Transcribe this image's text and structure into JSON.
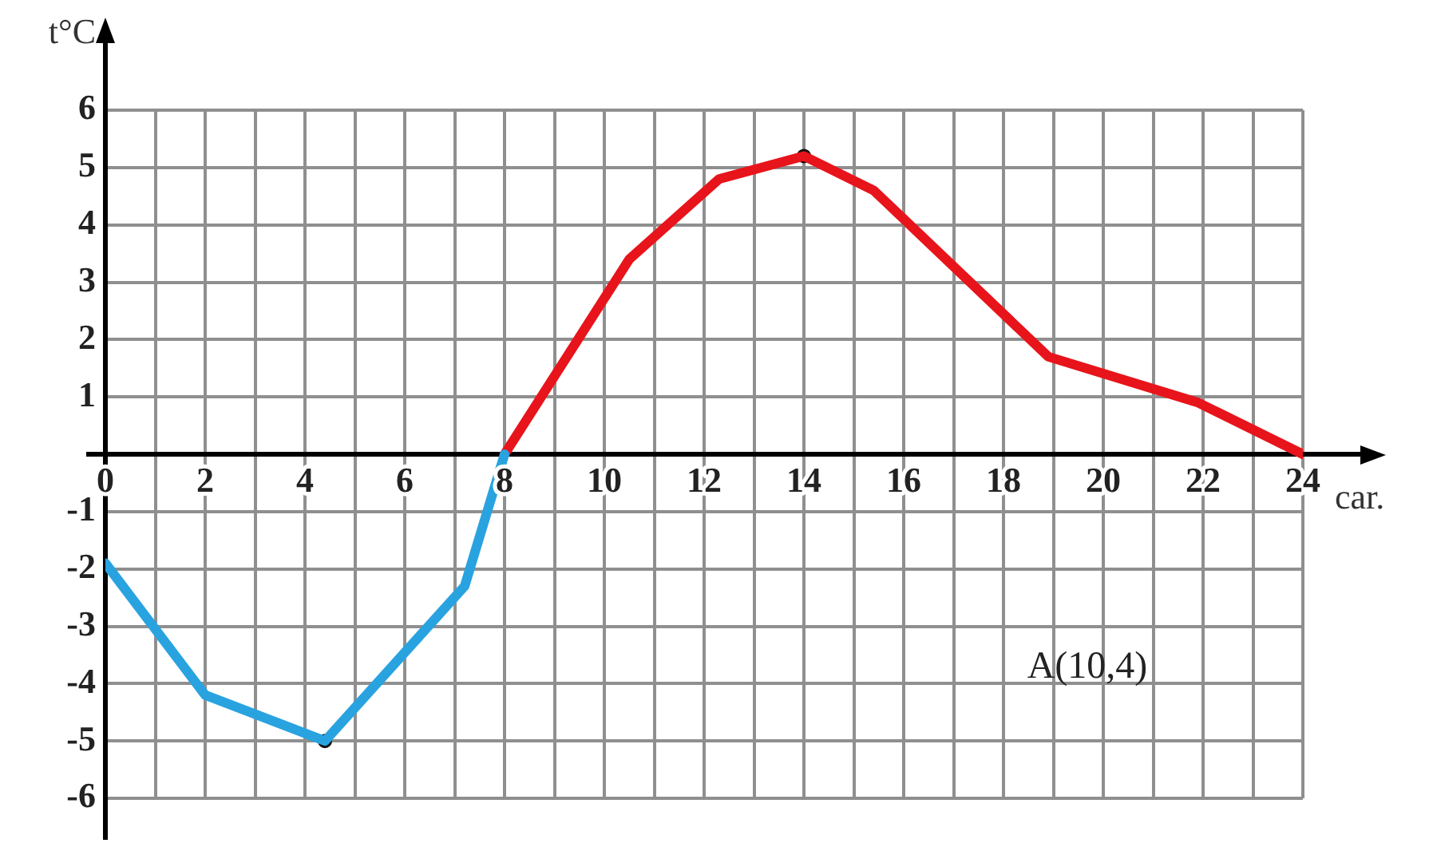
{
  "chart_data": {
    "type": "line",
    "xlabel": "car.",
    "ylabel": "t°C",
    "annotations": [
      "A(10,4)"
    ],
    "xlim": [
      0,
      24
    ],
    "ylim": [
      -6,
      6
    ],
    "xticks": [
      0,
      {
        "value": 1,
        "label": null
      },
      2,
      {
        "value": 3,
        "label": null
      },
      4,
      {
        "value": 5,
        "label": null
      },
      6,
      {
        "value": 7,
        "label": null
      },
      8,
      {
        "value": 9,
        "label": null
      },
      10,
      {
        "value": 11,
        "label": null
      },
      12,
      {
        "value": 13,
        "label": null
      },
      14,
      {
        "value": 15,
        "label": null
      },
      16,
      {
        "value": 17,
        "label": null
      },
      18,
      {
        "value": 19,
        "label": null
      },
      20,
      {
        "value": 21,
        "label": null
      },
      22,
      {
        "value": 23,
        "label": null
      },
      24
    ],
    "yticks": [
      -6,
      -5,
      -4,
      -3,
      -2,
      -1,
      1,
      2,
      3,
      4,
      5,
      6
    ],
    "grid": true,
    "line_style": "solid",
    "series": [
      {
        "color": "#29a3e0",
        "x": [
          0,
          2,
          4.4,
          7.2,
          8
        ],
        "values": [
          -1.9,
          -4.2,
          -5,
          -2.3,
          0
        ]
      },
      {
        "color": "#e8141b",
        "x": [
          8,
          10.5,
          12.3,
          14,
          15.4,
          18.9,
          21.9,
          24
        ],
        "values": [
          0,
          3.4,
          4.8,
          5.2,
          4.6,
          1.7,
          0.9,
          0
        ]
      },
      {
        "type": "scatter",
        "marker": "circle",
        "color": "#111111",
        "x": [
          4.4,
          14
        ],
        "values": [
          -5,
          5.2
        ]
      }
    ]
  }
}
